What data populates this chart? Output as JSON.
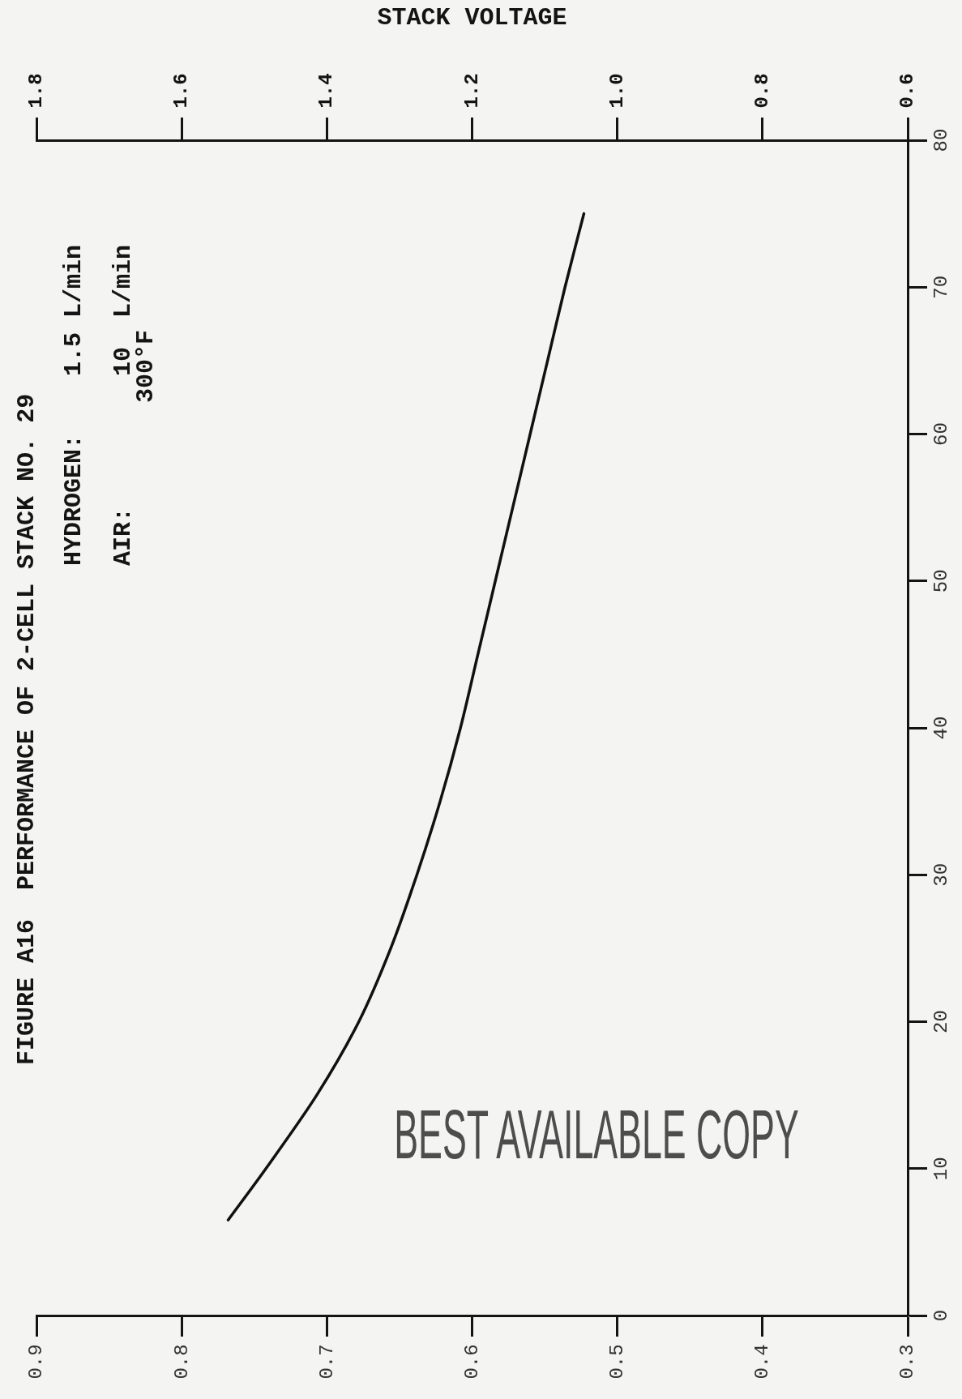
{
  "chart_data": {
    "type": "line",
    "title": "FIGURE A16  PERFORMANCE OF 2-CELL STACK NO. 29",
    "x2label": "STACK VOLTAGE",
    "annotations": [
      "HYDROGEN:",
      "1.5 L/min",
      "AIR:",
      "10  L/min",
      "300°F",
      "BEST AVAILABLE COPY"
    ],
    "x": [
      0.768,
      0.742,
      0.707,
      0.678,
      0.656,
      0.638,
      0.622,
      0.608,
      0.596,
      0.584,
      0.572,
      0.56,
      0.548,
      0.536,
      0.523
    ],
    "series": [
      {
        "color": "#111111",
        "values": [
          6.5,
          10,
          15,
          20,
          25,
          30,
          35,
          40,
          45,
          50,
          55,
          60,
          65,
          70,
          75
        ]
      }
    ],
    "xlim": [
      0.9,
      0.3
    ],
    "xticks": [
      0.9,
      0.8,
      0.7,
      0.6,
      0.5,
      0.4,
      0.3
    ],
    "x2lim": [
      1.8,
      0.6
    ],
    "x2ticks": [
      1.8,
      1.6,
      1.4,
      1.2,
      {
        "value": 1,
        "label": "1.0"
      },
      0.8,
      0.6
    ],
    "ylim": [
      0,
      80
    ],
    "yticks": [
      0,
      10,
      20,
      30,
      40,
      50,
      60,
      70,
      80
    ],
    "line_style": "solid"
  }
}
